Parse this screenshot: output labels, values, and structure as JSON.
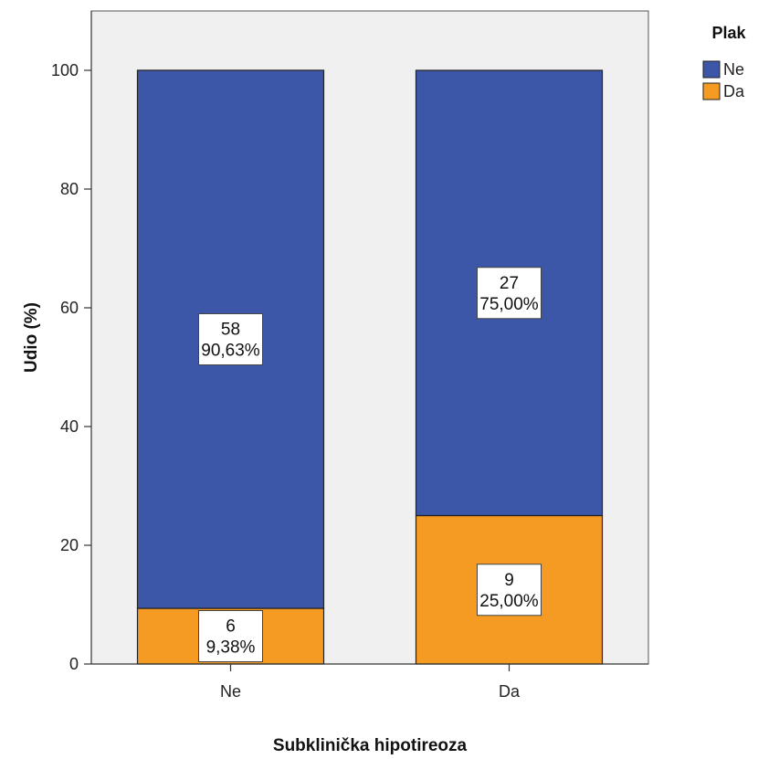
{
  "chart_data": {
    "type": "bar",
    "stacked": true,
    "percent": true,
    "title": "",
    "xlabel": "Subklinička hipotireoza",
    "ylabel": "Udio (%)",
    "ylim": [
      0,
      110
    ],
    "yticks": [
      0,
      20,
      40,
      60,
      80,
      100
    ],
    "grid": false,
    "categories": [
      "Ne",
      "Da"
    ],
    "legend": {
      "title": "Plak",
      "position": "top-right"
    },
    "series": [
      {
        "name": "Da",
        "color": "#f59a23",
        "values": [
          9.38,
          25.0
        ],
        "counts": [
          "6",
          "9"
        ],
        "percent_labels": [
          "9,38%",
          "25,00%"
        ]
      },
      {
        "name": "Ne",
        "color": "#3c56a8",
        "values": [
          90.63,
          75.0
        ],
        "counts": [
          "58",
          "27"
        ],
        "percent_labels": [
          "90,63%",
          "75,00%"
        ]
      }
    ],
    "plot_background": "#f0f0f0"
  }
}
